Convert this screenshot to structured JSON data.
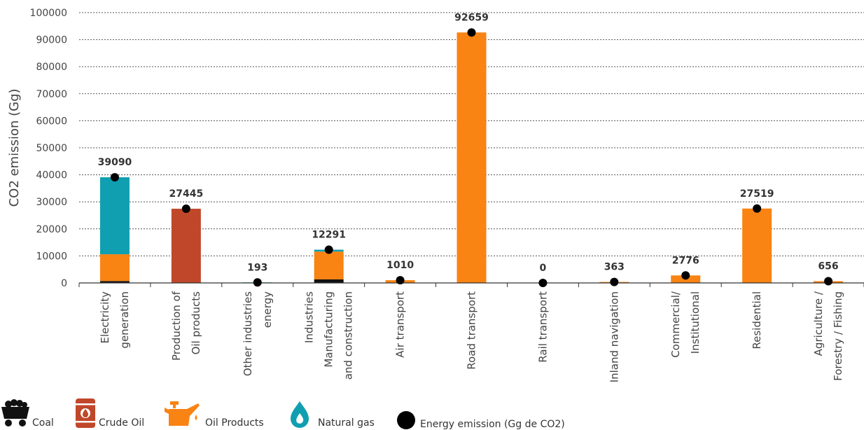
{
  "chart_data": {
    "type": "bar",
    "stacked": true,
    "ylabel": "CO2 emission (Gg)",
    "ylim": [
      0,
      100000
    ],
    "yticks": [
      0,
      10000,
      20000,
      30000,
      40000,
      50000,
      60000,
      70000,
      80000,
      90000,
      100000
    ],
    "grid": "horizontal-dashed",
    "categories": [
      [
        "Electricity",
        "generation"
      ],
      [
        "Production of",
        "Oil products"
      ],
      [
        "Other industries",
        "energy"
      ],
      [
        "Industries",
        "Manufacturing",
        "and construction"
      ],
      [
        "Air transport"
      ],
      [
        "Road transport"
      ],
      [
        "Rail transport"
      ],
      [
        "Inland navigation"
      ],
      [
        "Commercial/",
        "Institutional"
      ],
      [
        "Residential"
      ],
      [
        "Agriculture /",
        "Forestry / Fishing"
      ]
    ],
    "series": [
      {
        "name": "Coal",
        "color": "#111111",
        "values": [
          700,
          0,
          0,
          1300,
          0,
          0,
          0,
          0,
          0,
          0,
          0
        ]
      },
      {
        "name": "Crude Oil",
        "color": "#c0472a",
        "values": [
          0,
          27445,
          0,
          0,
          0,
          0,
          0,
          0,
          0,
          0,
          0
        ]
      },
      {
        "name": "Oil Products",
        "color": "#f98313",
        "values": [
          9900,
          0,
          60,
          10300,
          1010,
          92659,
          0,
          363,
          2776,
          27519,
          656
        ]
      },
      {
        "name": "Natural gas",
        "color": "#109fb0",
        "values": [
          28490,
          0,
          133,
          691,
          0,
          0,
          0,
          0,
          0,
          0,
          0
        ]
      }
    ],
    "energy_emission": {
      "name": "Energy emission (Gg de CO2)",
      "values": [
        39090,
        27445,
        193,
        12291,
        1010,
        92659,
        0,
        363,
        2776,
        27519,
        656
      ],
      "labels": [
        "39090",
        "27445",
        "193",
        "12291",
        "1010",
        "92659",
        "0",
        "363",
        "2776",
        "27519",
        "656"
      ]
    }
  },
  "legend": [
    {
      "icon": "coal-cart-icon",
      "label": "Coal"
    },
    {
      "icon": "oil-barrel-icon",
      "label": "Crude Oil"
    },
    {
      "icon": "oil-can-icon",
      "label": "Oil Products"
    },
    {
      "icon": "gas-flame-icon",
      "label": "Natural gas"
    },
    {
      "icon": "black-dot-icon",
      "label": "Energy emission (Gg de CO2)"
    }
  ]
}
